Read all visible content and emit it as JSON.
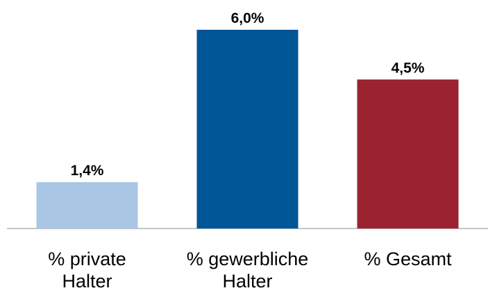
{
  "chart_data": {
    "type": "bar",
    "categories": [
      "% private\nHalter",
      "% gewerbliche\nHalter",
      "% Gesamt"
    ],
    "values": [
      1.4,
      6.0,
      4.5
    ],
    "value_labels": [
      "1,4%",
      "6,0%",
      "4,5%"
    ],
    "colors": [
      "#a9c6e4",
      "#005596",
      "#9b2230"
    ]
  }
}
